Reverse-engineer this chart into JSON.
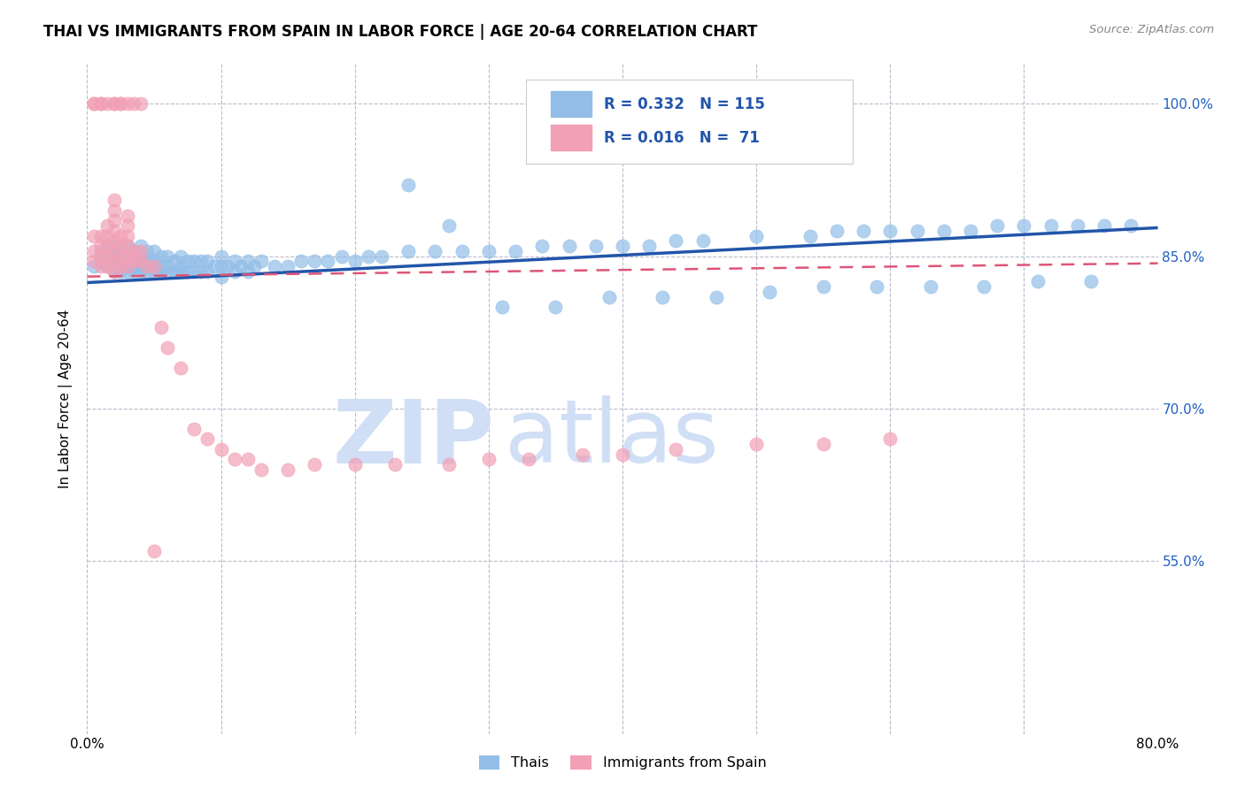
{
  "title": "THAI VS IMMIGRANTS FROM SPAIN IN LABOR FORCE | AGE 20-64 CORRELATION CHART",
  "source": "Source: ZipAtlas.com",
  "ylabel": "In Labor Force | Age 20-64",
  "xlim": [
    0.0,
    0.8
  ],
  "ylim": [
    0.38,
    1.04
  ],
  "xticks": [
    0.0,
    0.1,
    0.2,
    0.3,
    0.4,
    0.5,
    0.6,
    0.7,
    0.8
  ],
  "ytick_positions": [
    0.55,
    0.7,
    0.85,
    1.0
  ],
  "ytick_labels": [
    "55.0%",
    "70.0%",
    "85.0%",
    "100.0%"
  ],
  "R_blue": "0.332",
  "N_blue": "115",
  "R_pink": "0.016",
  "N_pink": " 71",
  "blue_color": "#92BEE8",
  "pink_color": "#F2A0B5",
  "blue_line_color": "#2255AA",
  "pink_line_color": "#DD5577",
  "watermark_zip": "ZIP",
  "watermark_atlas": "atlas",
  "watermark_color": "#D0DFF5",
  "legend_text_color": "#2255AA",
  "blue_scatter_x": [
    0.005,
    0.01,
    0.01,
    0.015,
    0.015,
    0.015,
    0.02,
    0.02,
    0.02,
    0.02,
    0.02,
    0.025,
    0.025,
    0.025,
    0.025,
    0.025,
    0.03,
    0.03,
    0.03,
    0.03,
    0.035,
    0.035,
    0.035,
    0.035,
    0.04,
    0.04,
    0.04,
    0.04,
    0.04,
    0.045,
    0.045,
    0.045,
    0.05,
    0.05,
    0.05,
    0.05,
    0.055,
    0.055,
    0.055,
    0.06,
    0.06,
    0.06,
    0.065,
    0.065,
    0.07,
    0.07,
    0.07,
    0.075,
    0.075,
    0.08,
    0.08,
    0.085,
    0.085,
    0.09,
    0.09,
    0.095,
    0.1,
    0.1,
    0.1,
    0.105,
    0.11,
    0.11,
    0.115,
    0.12,
    0.12,
    0.125,
    0.13,
    0.14,
    0.15,
    0.16,
    0.17,
    0.18,
    0.19,
    0.2,
    0.21,
    0.22,
    0.24,
    0.26,
    0.28,
    0.3,
    0.32,
    0.34,
    0.36,
    0.38,
    0.4,
    0.42,
    0.44,
    0.46,
    0.5,
    0.54,
    0.56,
    0.58,
    0.6,
    0.62,
    0.64,
    0.66,
    0.68,
    0.7,
    0.72,
    0.74,
    0.76,
    0.78,
    0.24,
    0.27,
    0.31,
    0.35,
    0.39,
    0.43,
    0.47,
    0.51,
    0.55,
    0.59,
    0.63,
    0.67,
    0.71,
    0.75
  ],
  "blue_scatter_y": [
    0.84,
    0.845,
    0.855,
    0.84,
    0.85,
    0.86,
    0.835,
    0.845,
    0.85,
    0.855,
    0.86,
    0.835,
    0.84,
    0.845,
    0.85,
    0.86,
    0.835,
    0.84,
    0.845,
    0.86,
    0.835,
    0.84,
    0.845,
    0.855,
    0.835,
    0.84,
    0.845,
    0.85,
    0.86,
    0.835,
    0.845,
    0.855,
    0.835,
    0.84,
    0.845,
    0.855,
    0.835,
    0.84,
    0.85,
    0.835,
    0.84,
    0.85,
    0.835,
    0.845,
    0.835,
    0.84,
    0.85,
    0.835,
    0.845,
    0.835,
    0.845,
    0.835,
    0.845,
    0.835,
    0.845,
    0.84,
    0.83,
    0.84,
    0.85,
    0.84,
    0.835,
    0.845,
    0.84,
    0.835,
    0.845,
    0.84,
    0.845,
    0.84,
    0.84,
    0.845,
    0.845,
    0.845,
    0.85,
    0.845,
    0.85,
    0.85,
    0.855,
    0.855,
    0.855,
    0.855,
    0.855,
    0.86,
    0.86,
    0.86,
    0.86,
    0.86,
    0.865,
    0.865,
    0.87,
    0.87,
    0.875,
    0.875,
    0.875,
    0.875,
    0.875,
    0.875,
    0.88,
    0.88,
    0.88,
    0.88,
    0.88,
    0.88,
    0.92,
    0.88,
    0.8,
    0.8,
    0.81,
    0.81,
    0.81,
    0.815,
    0.82,
    0.82,
    0.82,
    0.82,
    0.825,
    0.825
  ],
  "pink_scatter_x": [
    0.005,
    0.005,
    0.005,
    0.01,
    0.01,
    0.01,
    0.01,
    0.015,
    0.015,
    0.015,
    0.015,
    0.015,
    0.02,
    0.02,
    0.02,
    0.02,
    0.02,
    0.02,
    0.02,
    0.02,
    0.025,
    0.025,
    0.025,
    0.025,
    0.03,
    0.03,
    0.03,
    0.03,
    0.03,
    0.03,
    0.035,
    0.035,
    0.04,
    0.04,
    0.045,
    0.05,
    0.055,
    0.06,
    0.07,
    0.08,
    0.09,
    0.1,
    0.11,
    0.12,
    0.13,
    0.15,
    0.17,
    0.2,
    0.23,
    0.27,
    0.3,
    0.33,
    0.37,
    0.4,
    0.44,
    0.5,
    0.55,
    0.6,
    0.005,
    0.005,
    0.01,
    0.01,
    0.015,
    0.02,
    0.02,
    0.025,
    0.025,
    0.03,
    0.035,
    0.04,
    0.05
  ],
  "pink_scatter_y": [
    0.845,
    0.855,
    0.87,
    0.84,
    0.85,
    0.86,
    0.87,
    0.84,
    0.85,
    0.86,
    0.87,
    0.88,
    0.835,
    0.845,
    0.855,
    0.865,
    0.875,
    0.885,
    0.895,
    0.905,
    0.84,
    0.85,
    0.86,
    0.87,
    0.84,
    0.85,
    0.86,
    0.87,
    0.88,
    0.89,
    0.845,
    0.855,
    0.845,
    0.855,
    0.84,
    0.84,
    0.78,
    0.76,
    0.74,
    0.68,
    0.67,
    0.66,
    0.65,
    0.65,
    0.64,
    0.64,
    0.645,
    0.645,
    0.645,
    0.645,
    0.65,
    0.65,
    0.655,
    0.655,
    0.66,
    0.665,
    0.665,
    0.67,
    1.0,
    1.0,
    1.0,
    1.0,
    1.0,
    1.0,
    1.0,
    1.0,
    1.0,
    1.0,
    1.0,
    1.0,
    0.56
  ],
  "blue_trend_x": [
    0.0,
    0.8
  ],
  "blue_trend_y": [
    0.824,
    0.878
  ],
  "pink_trend_x": [
    0.0,
    0.8
  ],
  "pink_trend_y": [
    0.83,
    0.843
  ]
}
